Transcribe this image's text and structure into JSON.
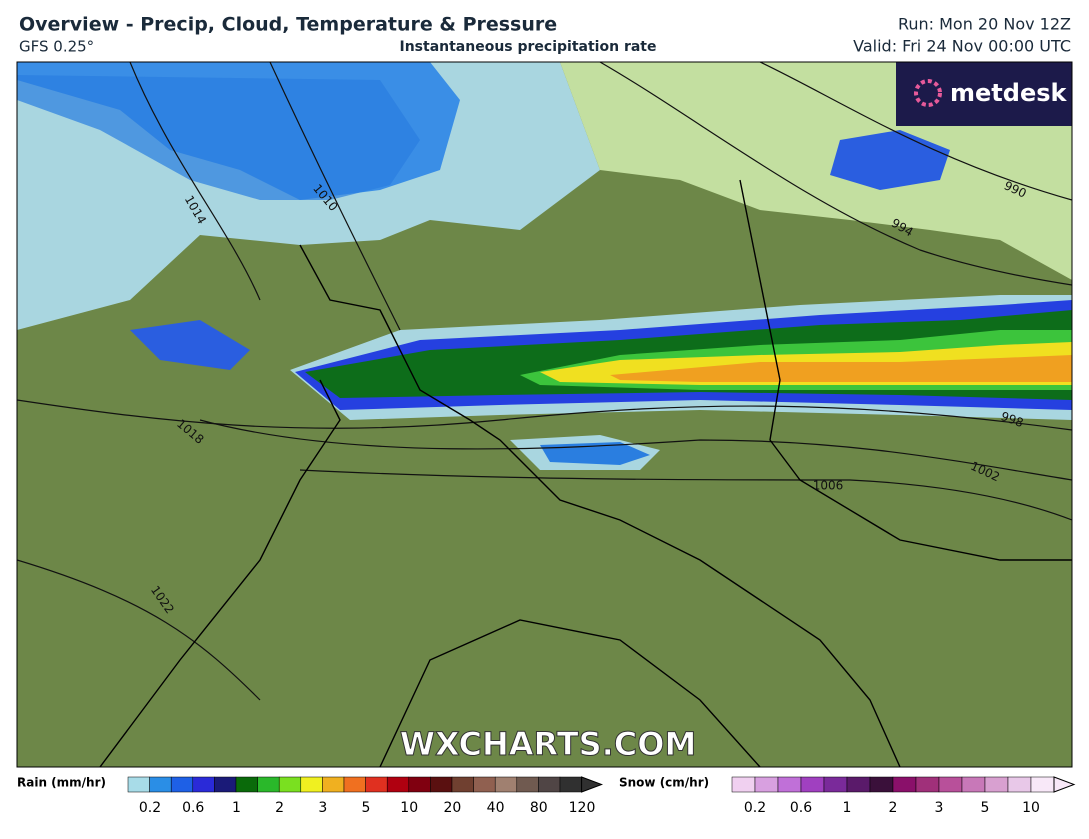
{
  "header": {
    "title": "Overview - Precip, Cloud, Temperature & Pressure",
    "model": "GFS 0.25°",
    "subtitle": "Instantaneous precipitation rate",
    "run": "Run: Mon 20 Nov 12Z",
    "valid": "Valid: Fri 24 Nov 00:00 UTC"
  },
  "map": {
    "logo": "metdesk",
    "watermark": "WXCHARTS.COM",
    "isobar_labels": [
      "1014",
      "1010",
      "994",
      "990",
      "1018",
      "998",
      "1002",
      "1006",
      "1022"
    ]
  },
  "legend": {
    "rain": {
      "title": "Rain (mm/hr)",
      "ticks": [
        "0.2",
        "0.6",
        "1",
        "2",
        "3",
        "5",
        "10",
        "20",
        "40",
        "80",
        "120"
      ]
    },
    "snow": {
      "title": "Snow (cm/hr)",
      "ticks": [
        "0.2",
        "0.6",
        "1",
        "2",
        "3",
        "5",
        "10"
      ]
    }
  }
}
